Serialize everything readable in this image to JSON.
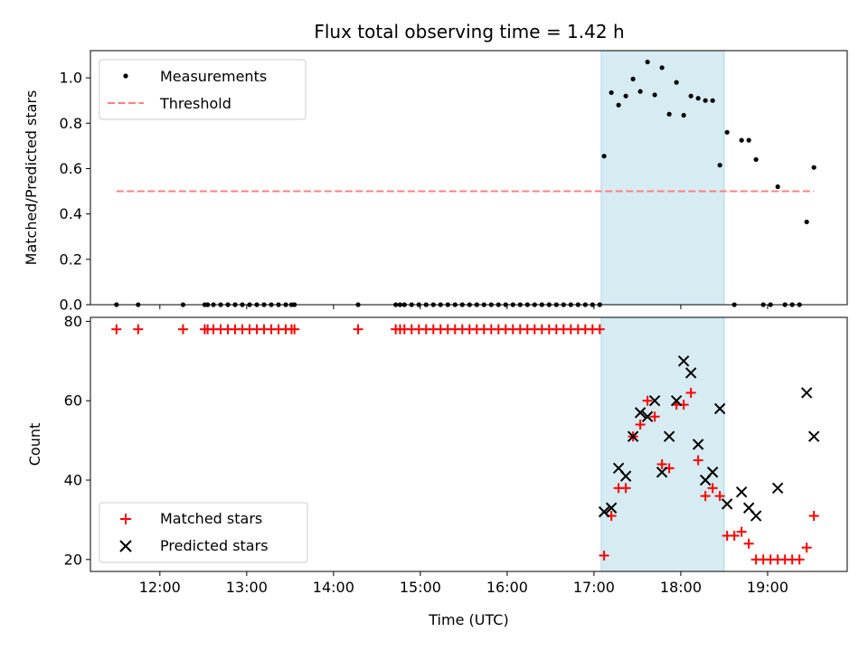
{
  "chart_data": [
    {
      "type": "scatter",
      "panel": "top",
      "title": "Flux total observing time = 1.42 h",
      "xlabel": "",
      "ylabel": "Matched/Predicted stars",
      "xlim": [
        "11:12",
        "19:55"
      ],
      "ylim": [
        0,
        1.12
      ],
      "yticks": [
        0.0,
        0.2,
        0.4,
        0.6,
        0.8,
        1.0
      ],
      "ytick_labels": [
        "0.0",
        "0.2",
        "0.4",
        "0.6",
        "0.8",
        "1.0"
      ],
      "highlight_span": [
        "17:05",
        "18:30"
      ],
      "legend_position": "top-left",
      "series": [
        {
          "name": "Measurements",
          "kind": "dots",
          "color": "#000000",
          "x": [
            "11:30",
            "11:45",
            "12:16",
            "12:31",
            "12:33",
            "12:37",
            "12:42",
            "12:47",
            "12:52",
            "12:57",
            "13:02",
            "13:07",
            "13:12",
            "13:17",
            "13:22",
            "13:27",
            "13:31",
            "13:33",
            "14:17",
            "14:43",
            "14:46",
            "14:49",
            "14:54",
            "14:59",
            "15:04",
            "15:09",
            "15:14",
            "15:19",
            "15:24",
            "15:29",
            "15:34",
            "15:39",
            "15:44",
            "15:49",
            "15:54",
            "15:59",
            "16:04",
            "16:09",
            "16:14",
            "16:19",
            "16:24",
            "16:29",
            "16:34",
            "16:39",
            "16:44",
            "16:49",
            "16:54",
            "16:59",
            "17:04",
            "17:07",
            "17:12",
            "17:17",
            "17:22",
            "17:27",
            "17:32",
            "17:37",
            "17:42",
            "17:47",
            "17:52",
            "17:57",
            "18:02",
            "18:07",
            "18:12",
            "18:17",
            "18:22",
            "18:27",
            "18:32",
            "18:37",
            "18:42",
            "18:47",
            "18:52",
            "18:57",
            "19:02",
            "19:07",
            "19:12",
            "19:17",
            "19:22",
            "19:27",
            "19:32"
          ],
          "y": [
            0,
            0,
            0,
            0,
            0,
            0,
            0,
            0,
            0,
            0,
            0,
            0,
            0,
            0,
            0,
            0,
            0,
            0,
            0,
            0,
            0,
            0,
            0,
            0,
            0,
            0,
            0,
            0,
            0,
            0,
            0,
            0,
            0,
            0,
            0,
            0,
            0,
            0,
            0,
            0,
            0,
            0,
            0,
            0,
            0,
            0,
            0,
            0,
            0,
            0.655,
            0.935,
            0.88,
            0.92,
            0.995,
            0.94,
            1.07,
            0.925,
            1.045,
            0.84,
            0.98,
            0.835,
            0.92,
            0.91,
            0.9,
            0.9,
            0.615,
            0.76,
            0,
            0.725,
            0.725,
            0.64,
            0,
            0,
            0.52,
            0,
            0,
            0,
            0.365,
            0.605
          ]
        },
        {
          "name": "Threshold",
          "kind": "dashed-line",
          "color": "#ff7f7f",
          "x": [
            "11:30",
            "19:32"
          ],
          "y": [
            0.5,
            0.5
          ]
        }
      ]
    },
    {
      "type": "scatter",
      "panel": "bottom",
      "xlabel": "Time (UTC)",
      "ylabel": "Count",
      "xlim": [
        "11:12",
        "19:55"
      ],
      "ylim": [
        17,
        81
      ],
      "yticks": [
        20,
        40,
        60,
        80
      ],
      "ytick_labels": [
        "20",
        "40",
        "60",
        "80"
      ],
      "xticks": [
        "12:00",
        "13:00",
        "14:00",
        "15:00",
        "16:00",
        "17:00",
        "18:00",
        "19:00"
      ],
      "xtick_labels": [
        "12:00",
        "13:00",
        "14:00",
        "15:00",
        "16:00",
        "17:00",
        "18:00",
        "19:00"
      ],
      "highlight_span": [
        "17:05",
        "18:30"
      ],
      "legend_position": "bottom-left",
      "series": [
        {
          "name": "Matched stars",
          "kind": "plus",
          "color": "#ff0000",
          "x": [
            "11:30",
            "11:45",
            "12:16",
            "12:31",
            "12:33",
            "12:37",
            "12:42",
            "12:47",
            "12:52",
            "12:57",
            "13:02",
            "13:07",
            "13:12",
            "13:17",
            "13:22",
            "13:27",
            "13:31",
            "13:33",
            "14:17",
            "14:43",
            "14:46",
            "14:49",
            "14:54",
            "14:59",
            "15:04",
            "15:09",
            "15:14",
            "15:19",
            "15:24",
            "15:29",
            "15:34",
            "15:39",
            "15:44",
            "15:49",
            "15:54",
            "15:59",
            "16:04",
            "16:09",
            "16:14",
            "16:19",
            "16:24",
            "16:29",
            "16:34",
            "16:39",
            "16:44",
            "16:49",
            "16:54",
            "16:59",
            "17:04",
            "17:07",
            "17:12",
            "17:17",
            "17:22",
            "17:27",
            "17:32",
            "17:37",
            "17:42",
            "17:47",
            "17:52",
            "17:57",
            "18:02",
            "18:07",
            "18:12",
            "18:17",
            "18:22",
            "18:27",
            "18:32",
            "18:37",
            "18:42",
            "18:47",
            "18:52",
            "18:57",
            "19:02",
            "19:07",
            "19:12",
            "19:17",
            "19:22",
            "19:27",
            "19:32"
          ],
          "y": [
            78,
            78,
            78,
            78,
            78,
            78,
            78,
            78,
            78,
            78,
            78,
            78,
            78,
            78,
            78,
            78,
            78,
            78,
            78,
            78,
            78,
            78,
            78,
            78,
            78,
            78,
            78,
            78,
            78,
            78,
            78,
            78,
            78,
            78,
            78,
            78,
            78,
            78,
            78,
            78,
            78,
            78,
            78,
            78,
            78,
            78,
            78,
            78,
            78,
            21,
            31,
            38,
            38,
            51,
            54,
            60,
            56,
            44,
            43,
            59,
            59,
            62,
            45,
            36,
            38,
            36,
            26,
            26,
            27,
            24,
            20,
            20,
            20,
            20,
            20,
            20,
            20,
            23,
            31
          ]
        },
        {
          "name": "Predicted stars",
          "kind": "x",
          "color": "#000000",
          "x": [
            "17:07",
            "17:12",
            "17:17",
            "17:22",
            "17:27",
            "17:32",
            "17:37",
            "17:42",
            "17:47",
            "17:52",
            "17:57",
            "18:02",
            "18:07",
            "18:12",
            "18:17",
            "18:22",
            "18:27",
            "18:32",
            "18:42",
            "18:47",
            "18:52",
            "19:07",
            "19:27",
            "19:32"
          ],
          "y": [
            32,
            33,
            43,
            41,
            51,
            57,
            56,
            60,
            42,
            51,
            60,
            70,
            67,
            49,
            40,
            42,
            58,
            34,
            37,
            33,
            31,
            38,
            62,
            51
          ]
        }
      ]
    }
  ]
}
